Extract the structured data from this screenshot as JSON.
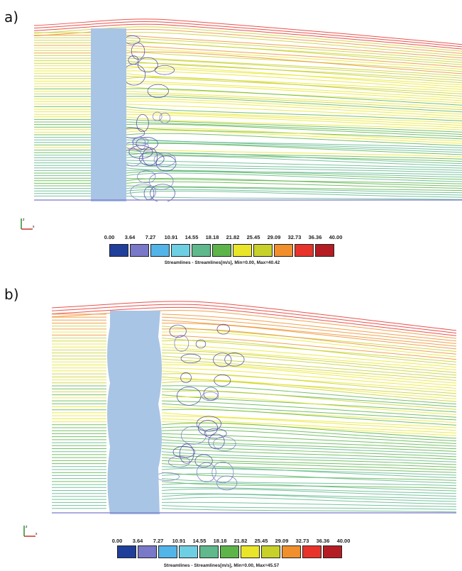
{
  "panels": [
    {
      "label": "a)",
      "colorbar": {
        "ticks": [
          "0.00",
          "3.64",
          "7.27",
          "10.91",
          "14.55",
          "18.18",
          "21.82",
          "25.45",
          "29.09",
          "32.73",
          "36.36",
          "40.00"
        ],
        "colors": [
          "#1f3f9a",
          "#7a78c8",
          "#52b4e8",
          "#6fcfe2",
          "#5fb98c",
          "#5db54a",
          "#e9e62a",
          "#c8d12a",
          "#f08f2c",
          "#e8332b",
          "#b51d24"
        ]
      },
      "caption": "Streamlines - Streamlines[m/s], Min=0.00, Max=40.42",
      "axis_labels": {
        "vertical": "z",
        "horizontal": "x"
      }
    },
    {
      "label": "b)",
      "colorbar": {
        "ticks": [
          "0.00",
          "3.64",
          "7.27",
          "10.91",
          "14.55",
          "18.18",
          "21.82",
          "25.45",
          "29.09",
          "32.73",
          "36.36",
          "40.00"
        ],
        "colors": [
          "#1f3f9a",
          "#7a78c8",
          "#52b4e8",
          "#6fcfe2",
          "#5fb98c",
          "#5db54a",
          "#e9e62a",
          "#c8d12a",
          "#f08f2c",
          "#e8332b",
          "#b51d24"
        ]
      },
      "caption": "Streamlines - Streamlines[m/s], Min=0.00, Max=45.57",
      "axis_labels": {
        "vertical": "z",
        "horizontal": "x"
      }
    }
  ],
  "building_color": "#a9c5e6"
}
